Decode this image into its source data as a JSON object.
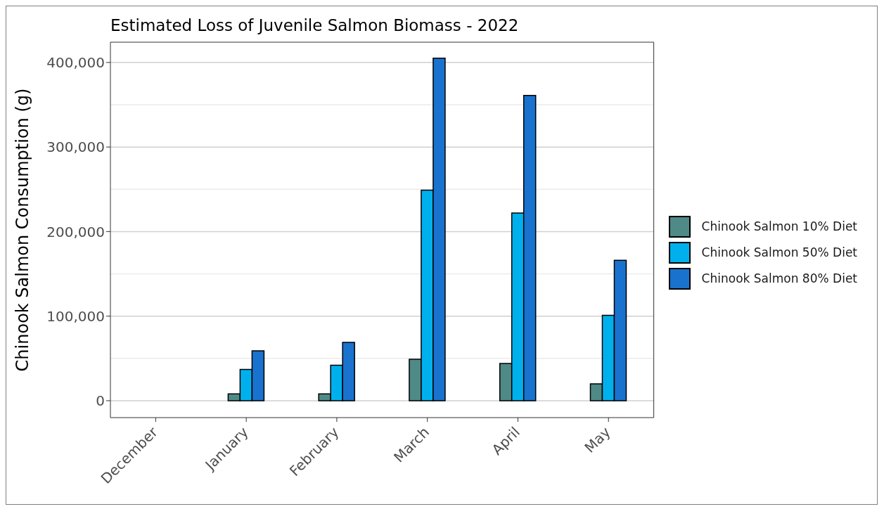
{
  "chart_data": {
    "type": "bar",
    "title": "Estimated Loss of Juvenile Salmon Biomass - 2022",
    "ylabel": "Chinook Salmon Consumption (g)",
    "categories": [
      "December",
      "January",
      "February",
      "March",
      "April",
      "May"
    ],
    "series": [
      {
        "name": "Chinook Salmon 10% Diet",
        "color": "#4f8a87",
        "values": [
          0,
          8000,
          8000,
          49000,
          44000,
          20000
        ]
      },
      {
        "name": "Chinook Salmon 50% Diet",
        "color": "#00b0ed",
        "values": [
          0,
          37000,
          42000,
          249000,
          222000,
          101000
        ]
      },
      {
        "name": "Chinook Salmon 80% Diet",
        "color": "#1a72cf",
        "values": [
          0,
          59000,
          69000,
          405000,
          361000,
          166000
        ]
      }
    ],
    "ylim": [
      -20000,
      424000
    ],
    "yticks": [
      {
        "value": 0,
        "label": "0"
      },
      {
        "value": 100000,
        "label": "100,000"
      },
      {
        "value": 200000,
        "label": "200,000"
      },
      {
        "value": 300000,
        "label": "300,000"
      },
      {
        "value": 400000,
        "label": "400,000"
      }
    ],
    "grid": "y",
    "legend": "right"
  }
}
